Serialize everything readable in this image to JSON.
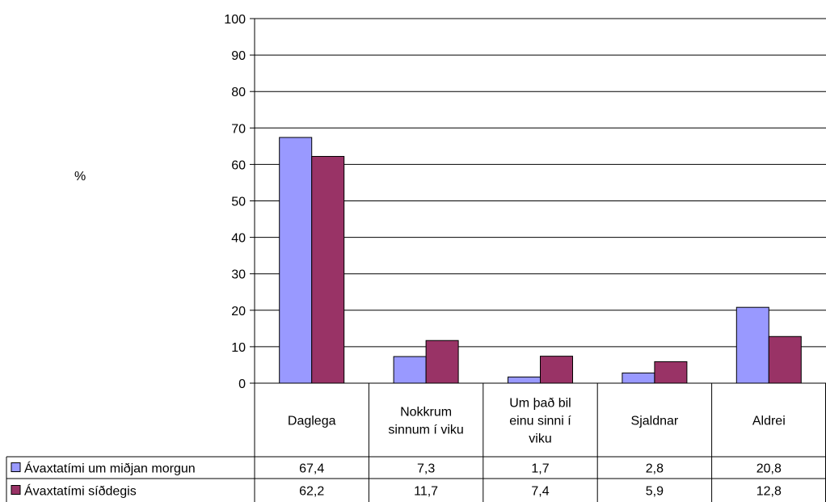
{
  "chart_data": {
    "type": "bar",
    "title": "",
    "ylabel": "%",
    "xlabel": "",
    "ylim": [
      0,
      100
    ],
    "yticks": [
      0,
      10,
      20,
      30,
      40,
      50,
      60,
      70,
      80,
      90,
      100
    ],
    "grid": true,
    "legend": "table-left",
    "categories": [
      [
        "Daglega"
      ],
      [
        "Nokkrum",
        "sinnum í viku"
      ],
      [
        "Um það bil",
        "einu sinni í",
        "viku"
      ],
      [
        "Sjaldnar"
      ],
      [
        "Aldrei"
      ]
    ],
    "series": [
      {
        "name": "Ávaxtatími um miðjan morgun",
        "color": "#9999ff",
        "values": [
          67.4,
          7.3,
          1.7,
          2.8,
          20.8
        ],
        "labels": [
          "67,4",
          "7,3",
          "1,7",
          "2,8",
          "20,8"
        ]
      },
      {
        "name": "Ávaxtatími síðdegis",
        "color": "#993366",
        "values": [
          62.2,
          11.7,
          7.4,
          5.9,
          12.8
        ],
        "labels": [
          "62,2",
          "11,7",
          "7,4",
          "5,9",
          "12,8"
        ]
      }
    ]
  }
}
